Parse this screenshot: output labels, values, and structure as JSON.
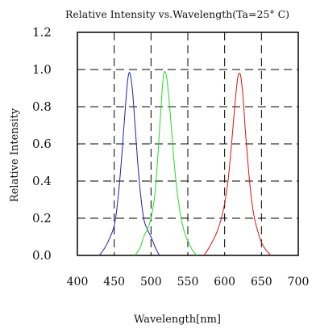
{
  "chart_data": {
    "type": "line",
    "title": "Relative Intensity vs.Wavelength(Ta=25° C)",
    "xlabel": "Wavelength[nm]",
    "ylabel": "Relative Intensity",
    "xlim": [
      400,
      700
    ],
    "ylim": [
      0,
      1.2
    ],
    "x_ticks": [
      "400",
      "450",
      "500",
      "550",
      "600",
      "650",
      "700"
    ],
    "y_ticks": [
      "0.0",
      "0.2",
      "0.4",
      "0.6",
      "0.8",
      "1.0",
      "1.2"
    ],
    "grid": "dashed",
    "series": [
      {
        "color": "#1f1fb4",
        "x": [
          430,
          440,
          450,
          455,
          460,
          463,
          466,
          468,
          470,
          472,
          475,
          478,
          481,
          485,
          490,
          495,
          500,
          505,
          510,
          512
        ],
        "y": [
          0.0,
          0.06,
          0.16,
          0.3,
          0.52,
          0.68,
          0.84,
          0.93,
          0.98,
          0.97,
          0.88,
          0.72,
          0.55,
          0.36,
          0.2,
          0.14,
          0.1,
          0.05,
          0.01,
          0.0
        ]
      },
      {
        "color": "#22dd22",
        "x": [
          478,
          485,
          490,
          495,
          500,
          505,
          508,
          511,
          514,
          517,
          520,
          523,
          527,
          531,
          535,
          540,
          545,
          550,
          556,
          562
        ],
        "y": [
          0.0,
          0.04,
          0.1,
          0.14,
          0.2,
          0.32,
          0.46,
          0.64,
          0.82,
          0.97,
          0.98,
          0.9,
          0.72,
          0.52,
          0.36,
          0.22,
          0.13,
          0.08,
          0.03,
          0.0
        ]
      },
      {
        "color": "#dd1111",
        "x": [
          572,
          580,
          590,
          598,
          604,
          608,
          612,
          615,
          618,
          620,
          622,
          625,
          628,
          632,
          636,
          640,
          645,
          650,
          656,
          663
        ],
        "y": [
          0.0,
          0.05,
          0.13,
          0.24,
          0.38,
          0.54,
          0.72,
          0.86,
          0.96,
          0.98,
          0.96,
          0.85,
          0.68,
          0.48,
          0.32,
          0.21,
          0.13,
          0.07,
          0.03,
          0.0
        ]
      }
    ]
  }
}
